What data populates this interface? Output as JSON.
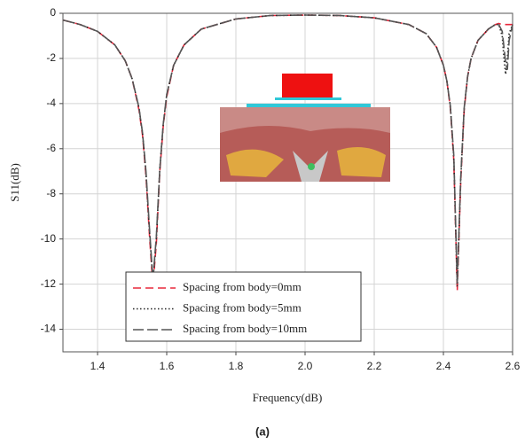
{
  "chart_data": {
    "type": "line",
    "xlabel": "Frequency(dB)",
    "ylabel": "S11(dB)",
    "x": [
      1.3,
      1.35,
      1.4,
      1.45,
      1.48,
      1.5,
      1.52,
      1.53,
      1.54,
      1.55,
      1.56,
      1.57,
      1.58,
      1.59,
      1.6,
      1.62,
      1.65,
      1.7,
      1.8,
      1.9,
      2.0,
      2.1,
      2.2,
      2.3,
      2.35,
      2.38,
      2.4,
      2.41,
      2.42,
      2.43,
      2.44,
      2.45,
      2.46,
      2.47,
      2.48,
      2.5,
      2.53,
      2.55,
      2.56,
      2.57,
      2.575,
      2.58,
      2.585,
      2.59,
      2.6
    ],
    "series": [
      {
        "name": "Spacing from body=0mm",
        "color": "#e8283c",
        "dash": "9,5",
        "values": [
          -0.3,
          -0.5,
          -0.8,
          -1.4,
          -2.1,
          -2.9,
          -4.3,
          -5.4,
          -7.2,
          -9.8,
          -12.1,
          -10.2,
          -7.0,
          -5.0,
          -3.7,
          -2.3,
          -1.4,
          -0.7,
          -0.25,
          -0.1,
          -0.08,
          -0.1,
          -0.2,
          -0.5,
          -0.9,
          -1.5,
          -2.3,
          -3.0,
          -4.2,
          -6.5,
          -12.3,
          -7.5,
          -4.3,
          -2.8,
          -2.0,
          -1.2,
          -0.7,
          -0.5,
          -0.45,
          -0.5,
          -0.5,
          -0.5,
          -0.5,
          -0.5,
          -0.5
        ]
      },
      {
        "name": "Spacing from body=5mm",
        "color": "#222222",
        "dash": "1.5,2.5",
        "values": [
          -0.3,
          -0.5,
          -0.8,
          -1.4,
          -2.1,
          -2.9,
          -4.2,
          -5.3,
          -7.1,
          -9.6,
          -11.9,
          -10.0,
          -6.9,
          -4.9,
          -3.6,
          -2.3,
          -1.4,
          -0.7,
          -0.25,
          -0.1,
          -0.08,
          -0.1,
          -0.2,
          -0.5,
          -0.9,
          -1.5,
          -2.3,
          -3.0,
          -4.1,
          -6.4,
          -12.1,
          -7.4,
          -4.2,
          -2.8,
          -2.0,
          -1.2,
          -0.7,
          -0.5,
          -0.5,
          -1.0,
          -2.0,
          -2.7,
          -2.0,
          -0.9,
          -0.5
        ]
      },
      {
        "name": "Spacing from body=10mm",
        "color": "#555555",
        "dash": "12,4",
        "values": [
          -0.3,
          -0.5,
          -0.8,
          -1.4,
          -2.1,
          -2.9,
          -4.2,
          -5.3,
          -7.0,
          -9.5,
          -11.8,
          -9.9,
          -6.9,
          -4.9,
          -3.6,
          -2.3,
          -1.4,
          -0.7,
          -0.25,
          -0.1,
          -0.08,
          -0.1,
          -0.2,
          -0.5,
          -0.9,
          -1.5,
          -2.3,
          -3.0,
          -4.1,
          -6.3,
          -12.0,
          -7.3,
          -4.2,
          -2.8,
          -2.0,
          -1.2,
          -0.7,
          -0.5,
          -0.5,
          -0.8,
          -1.5,
          -2.2,
          -2.5,
          -1.2,
          -0.5
        ]
      }
    ],
    "xlim": [
      1.3,
      2.6
    ],
    "ylim": [
      -15,
      0
    ],
    "xticks": [
      1.4,
      1.6,
      1.8,
      {
        "value": 2,
        "label": "2.0"
      },
      2.2,
      2.4,
      2.6
    ],
    "yticks": [
      0,
      -2,
      -4,
      -6,
      -8,
      -10,
      -12,
      -14
    ],
    "grid": true,
    "legend": "lower center"
  },
  "caption": "(a)"
}
